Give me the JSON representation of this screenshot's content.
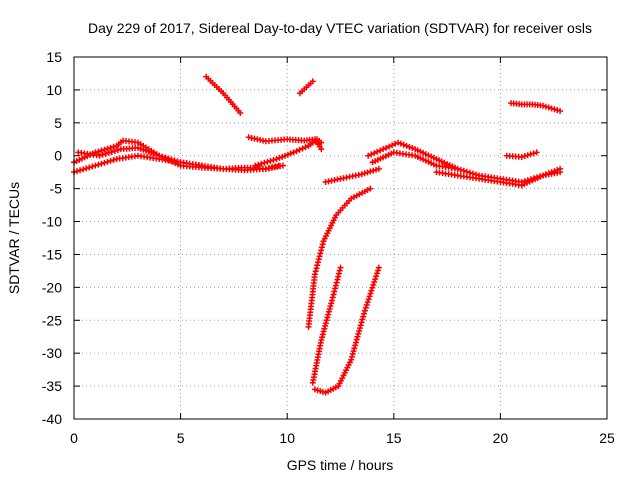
{
  "chart_data": {
    "type": "scatter",
    "title": "Day 229 of 2017, Sidereal Day-to-day VTEC variation (SDTVAR) for receiver osls",
    "xlabel": "GPS time / hours",
    "ylabel": "SDTVAR / TECUs",
    "xlim": [
      0,
      25
    ],
    "ylim": [
      -40,
      15
    ],
    "xticks": [
      0,
      5,
      10,
      15,
      20,
      25
    ],
    "yticks": [
      -40,
      -35,
      -30,
      -25,
      -20,
      -15,
      -10,
      -5,
      0,
      5,
      10,
      15
    ],
    "grid": true,
    "marker": "+",
    "color": "#ff0000",
    "series": [
      {
        "x": [
          0,
          1,
          2,
          2.3,
          3,
          4,
          5,
          6,
          7,
          8,
          9,
          9.8
        ],
        "y": [
          -1,
          0.5,
          1.5,
          2.3,
          2,
          0,
          -1.5,
          -1.8,
          -2,
          -1.8,
          -2,
          -1.5
        ]
      },
      {
        "x": [
          0,
          1,
          2,
          3,
          4,
          5,
          6,
          7,
          8,
          9,
          9.6
        ],
        "y": [
          -2.5,
          -1.5,
          -0.5,
          0,
          -0.5,
          -1,
          -1.5,
          -2,
          -2.2,
          -2,
          -1.5
        ]
      },
      {
        "x": [
          0.2,
          1.2,
          2.2,
          3,
          4,
          5,
          6
        ],
        "y": [
          0.5,
          0,
          1,
          1.2,
          0,
          -1,
          -1.5
        ]
      },
      {
        "x": [
          6.2,
          7,
          7.8
        ],
        "y": [
          12,
          9.5,
          6.5
        ]
      },
      {
        "x": [
          8.2,
          9,
          10,
          10.8,
          11.3,
          11.6
        ],
        "y": [
          2.8,
          2.2,
          2.5,
          2.3,
          2.5,
          1
        ]
      },
      {
        "x": [
          8.5,
          9.5,
          10.3,
          11,
          11.4,
          11.6
        ],
        "y": [
          -1.5,
          -0.5,
          0.5,
          1.5,
          2.5,
          2
        ]
      },
      {
        "x": [
          10.6,
          11.2
        ],
        "y": [
          9.5,
          11.3
        ]
      },
      {
        "x": [
          11,
          11.3,
          11.7,
          12.3,
          13,
          13.9
        ],
        "y": [
          -26,
          -18,
          -13,
          -9,
          -6.5,
          -5
        ]
      },
      {
        "x": [
          11.2,
          11.6,
          12.1,
          12.5
        ],
        "y": [
          -34.5,
          -28,
          -22,
          -17
        ]
      },
      {
        "x": [
          11.3,
          11.8,
          12.4,
          13,
          13.6,
          14.3
        ],
        "y": [
          -35.5,
          -36,
          -35,
          -31,
          -24,
          -17
        ]
      },
      {
        "x": [
          11.8,
          12.5,
          13.5,
          14.3
        ],
        "y": [
          -4,
          -3.5,
          -2.8,
          -2
        ]
      },
      {
        "x": [
          13.8,
          14.5,
          15.2,
          16,
          17,
          18
        ],
        "y": [
          0,
          1,
          2,
          1,
          -0.5,
          -2
        ]
      },
      {
        "x": [
          14,
          15,
          16,
          17,
          18,
          19,
          20,
          21,
          22,
          22.8
        ],
        "y": [
          -1,
          0.5,
          0,
          -1.5,
          -2,
          -3,
          -3.5,
          -4,
          -3,
          -2.5
        ]
      },
      {
        "x": [
          17,
          18,
          19,
          20,
          21,
          22,
          22.8
        ],
        "y": [
          -2.5,
          -3,
          -3.5,
          -4,
          -4.5,
          -3,
          -2
        ]
      },
      {
        "x": [
          20.3,
          21,
          21.7
        ],
        "y": [
          0,
          -0.2,
          0.5
        ]
      },
      {
        "x": [
          20.5,
          21,
          21.5,
          22,
          22.8
        ],
        "y": [
          8,
          7.8,
          7.8,
          7.6,
          6.8
        ]
      }
    ]
  }
}
